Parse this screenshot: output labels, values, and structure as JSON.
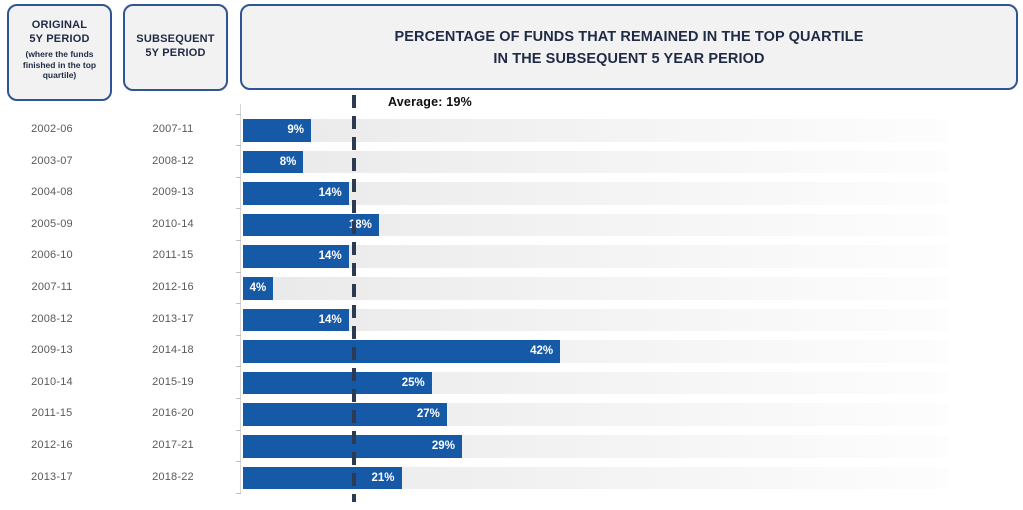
{
  "header": {
    "box1": {
      "title_line1": "ORIGINAL",
      "title_line2": "5Y PERIOD",
      "subtitle": "(where the funds finished in the top quartile)"
    },
    "box2": {
      "title_line1": "SUBSEQUENT",
      "title_line2": "5Y PERIOD"
    },
    "title_line1": "PERCENTAGE OF FUNDS THAT REMAINED IN THE TOP QUARTILE",
    "title_line2": "IN THE SUBSEQUENT 5 YEAR PERIOD"
  },
  "chart_data": {
    "type": "bar",
    "orientation": "horizontal",
    "title": "Percentage of funds that remained in the top quartile in the subsequent 5 year period",
    "annotation": "Average: 19%",
    "average_percent": 19,
    "xlim": [
      0,
      100
    ],
    "grid": false,
    "legend": "none",
    "categories_original_5y_period": [
      "2002-06",
      "2003-07",
      "2004-08",
      "2005-09",
      "2006-10",
      "2007-11",
      "2008-12",
      "2009-13",
      "2010-14",
      "2011-15",
      "2012-16",
      "2013-17"
    ],
    "categories_subsequent_5y_period": [
      "2007-11",
      "2008-12",
      "2009-13",
      "2010-14",
      "2011-15",
      "2012-16",
      "2013-17",
      "2014-18",
      "2015-19",
      "2016-20",
      "2017-21",
      "2018-22"
    ],
    "values": [
      9,
      8,
      14,
      18,
      14,
      4,
      14,
      42,
      25,
      27,
      29,
      21
    ],
    "rows": [
      {
        "original_period": "2002-06",
        "subsequent_period": "2007-11",
        "value": 9,
        "label": "9%"
      },
      {
        "original_period": "2003-07",
        "subsequent_period": "2008-12",
        "value": 8,
        "label": "8%"
      },
      {
        "original_period": "2004-08",
        "subsequent_period": "2009-13",
        "value": 14,
        "label": "14%"
      },
      {
        "original_period": "2005-09",
        "subsequent_period": "2010-14",
        "value": 18,
        "label": "18%"
      },
      {
        "original_period": "2006-10",
        "subsequent_period": "2011-15",
        "value": 14,
        "label": "14%"
      },
      {
        "original_period": "2007-11",
        "subsequent_period": "2012-16",
        "value": 4,
        "label": "4%"
      },
      {
        "original_period": "2008-12",
        "subsequent_period": "2013-17",
        "value": 14,
        "label": "14%"
      },
      {
        "original_period": "2009-13",
        "subsequent_period": "2014-18",
        "value": 42,
        "label": "42%"
      },
      {
        "original_period": "2010-14",
        "subsequent_period": "2015-19",
        "value": 25,
        "label": "25%"
      },
      {
        "original_period": "2011-15",
        "subsequent_period": "2016-20",
        "value": 27,
        "label": "27%"
      },
      {
        "original_period": "2012-16",
        "subsequent_period": "2017-21",
        "value": 29,
        "label": "29%"
      },
      {
        "original_period": "2013-17",
        "subsequent_period": "2018-22",
        "value": 21,
        "label": "21%"
      }
    ],
    "colors": {
      "bar": "#1659A6",
      "track_start": "#e9e9e9",
      "track_end": "#fdfdfd",
      "average_line": "#2c3a52",
      "box_border": "#2F5694",
      "box_fill": "#f2f2f2",
      "header_text": "#1F2A44"
    }
  }
}
